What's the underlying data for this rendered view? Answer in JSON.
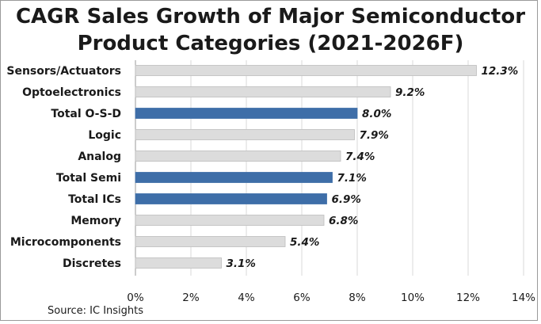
{
  "colors": {
    "highlight": "#3e6ea8",
    "normal": "#dcdcdc",
    "normal_stroke": "#bdbdbd"
  },
  "chart_data": {
    "type": "bar",
    "orientation": "horizontal",
    "title_line1": "CAGR Sales Growth of Major Semiconductor",
    "title_line2": "Product Categories (2021-2026F)",
    "categories": [
      "Sensors/Actuators",
      "Optoelectronics",
      "Total O-S-D",
      "Logic",
      "Analog",
      "Total Semi",
      "Total ICs",
      "Memory",
      "Microcomponents",
      "Discretes"
    ],
    "values": [
      12.3,
      9.2,
      8.0,
      7.9,
      7.4,
      7.1,
      6.9,
      6.8,
      5.4,
      3.1
    ],
    "value_labels": [
      "12.3%",
      "9.2%",
      "8.0%",
      "7.9%",
      "7.4%",
      "7.1%",
      "6.9%",
      "6.8%",
      "5.4%",
      "3.1%"
    ],
    "highlighted": [
      false,
      false,
      true,
      false,
      false,
      true,
      true,
      false,
      false,
      false
    ],
    "xlim": [
      0,
      14
    ],
    "xticks": [
      "0%",
      "2%",
      "4%",
      "6%",
      "8%",
      "10%",
      "12%",
      "14%"
    ],
    "grid": true,
    "xlabel": "",
    "ylabel": ""
  },
  "source": "Source:  IC Insights"
}
